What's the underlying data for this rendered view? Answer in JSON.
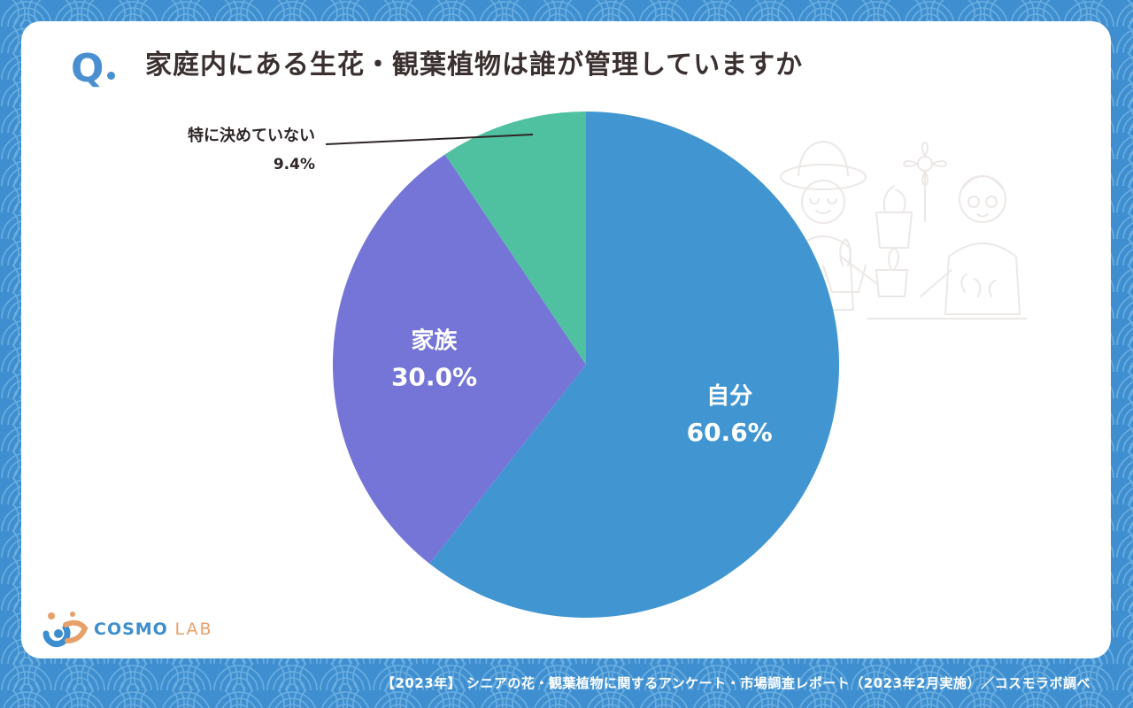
{
  "header": {
    "q_label": "Q",
    "title": "家庭内にある生花・観葉植物は誰が管理していますか"
  },
  "chart_data": {
    "type": "pie",
    "categories": [
      "自分",
      "家族",
      "特に決めていない"
    ],
    "values": [
      60.6,
      30.0,
      9.4
    ],
    "labels": [
      "60.6%",
      "30.0%",
      "9.4%"
    ],
    "colors": [
      "#4196d2",
      "#7475d6",
      "#4fc1a1"
    ],
    "start": "12 o'clock",
    "direction": "clockwise"
  },
  "logo": {
    "name_main": "COSMO",
    "name_sub": "LAB"
  },
  "footer": {
    "source": "【2023年】 シニアの花・観葉植物に関するアンケート・市場調査レポート（2023年2月実施）／コスモラボ調べ"
  },
  "colors": {
    "background": "#3f8fd0",
    "card": "#ffffff",
    "title_text": "#3b3030",
    "accent": "#4a8fd0"
  }
}
